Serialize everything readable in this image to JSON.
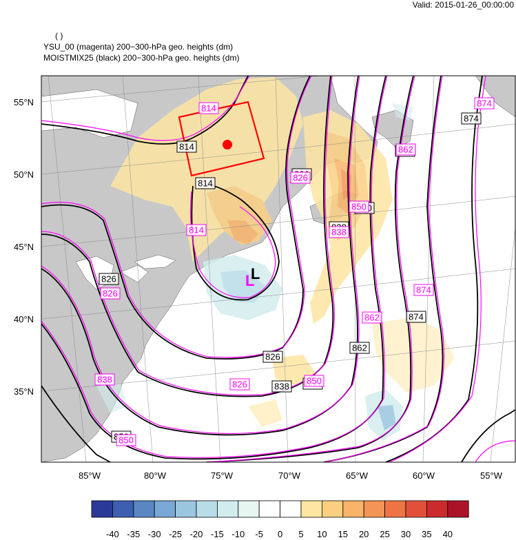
{
  "valid": "Valid: 2015-01-26_00:00:00",
  "title": {
    "line1": "( )",
    "line2": "YSU_00 (magenta) 200−300-hPa geo. heights   (dm)",
    "line3": "MOISTMIX25 (black) 200−300-hPa geo. heights   (dm)"
  },
  "axes": {
    "lat": [
      "55°N",
      "50°N",
      "45°N",
      "40°N",
      "35°N"
    ],
    "lon": [
      "85°W",
      "80°W",
      "75°W",
      "70°W",
      "65°W",
      "60°W",
      "55°W"
    ]
  },
  "colorbar": {
    "labels": [
      "-40",
      "-35",
      "-30",
      "-25",
      "-20",
      "-15",
      "-10",
      "-5",
      "0",
      "5",
      "10",
      "15",
      "20",
      "25",
      "30",
      "35",
      "40"
    ],
    "colors": [
      "#2b3a98",
      "#3d5fb0",
      "#5a86c4",
      "#7aa8d4",
      "#9ac6e0",
      "#b8dce8",
      "#d2ecee",
      "#e8f6f2",
      "#ffffff",
      "#ffffff",
      "#fde6a2",
      "#fbcf82",
      "#f8b469",
      "#f49455",
      "#ee7446",
      "#e2503a",
      "#cc2b2e",
      "#ac1228"
    ]
  },
  "contours": {
    "black": [
      {
        "label": "814"
      },
      {
        "label": "814"
      },
      {
        "label": "826"
      },
      {
        "label": "826"
      },
      {
        "label": "826"
      },
      {
        "label": "838"
      },
      {
        "label": "838"
      },
      {
        "label": "850"
      },
      {
        "label": "850"
      },
      {
        "label": "850"
      },
      {
        "label": "862"
      },
      {
        "label": "862"
      },
      {
        "label": "874"
      },
      {
        "label": "874"
      }
    ],
    "magenta": [
      {
        "label": "814"
      },
      {
        "label": "814"
      },
      {
        "label": "826"
      },
      {
        "label": "826"
      },
      {
        "label": "826"
      },
      {
        "label": "838"
      },
      {
        "label": "838"
      },
      {
        "label": "850"
      },
      {
        "label": "850"
      },
      {
        "label": "850"
      },
      {
        "label": "862"
      },
      {
        "label": "862"
      },
      {
        "label": "874"
      },
      {
        "label": "874"
      }
    ]
  },
  "lows": {
    "black": "L",
    "magenta": "L"
  },
  "colors": {
    "land": "#c8c8c8",
    "ocean": "#ffffff",
    "black_contour": "#000000",
    "magenta_contour": "#ff00ff",
    "box": "#ff0000"
  }
}
